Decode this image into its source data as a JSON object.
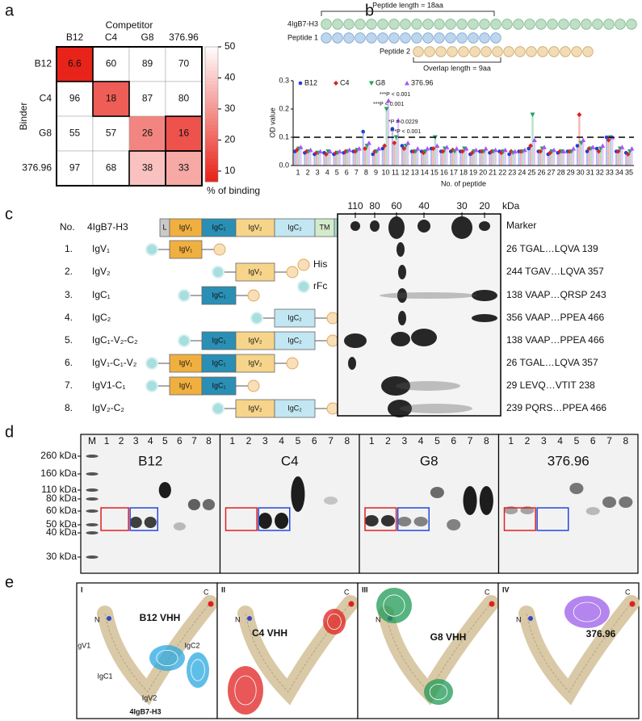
{
  "panel_labels": [
    "a",
    "b",
    "c",
    "d",
    "e"
  ],
  "chart_data": [
    {
      "type": "heatmap",
      "x_title": "Competitor",
      "y_title": "Binder",
      "x_categories": [
        "B12",
        "C4",
        "G8",
        "376.96"
      ],
      "y_categories": [
        "B12",
        "C4",
        "G8",
        "376.96"
      ],
      "values": [
        [
          6.6,
          60,
          89,
          70
        ],
        [
          96,
          18,
          87,
          80
        ],
        [
          55,
          57,
          26,
          16
        ],
        [
          97,
          68,
          38,
          33
        ]
      ],
      "colorbar_label": "% of binding",
      "clim": [
        6.6,
        50
      ],
      "colorbar_ticks": [
        10,
        20,
        30,
        40,
        50
      ],
      "low_color": "#e8231a",
      "high_color": "#ffffff"
    },
    {
      "type": "bar",
      "y_label": "OD value",
      "x_label": "No. of peptide",
      "categories": [
        "1",
        "2",
        "3",
        "4",
        "5",
        "6",
        "7",
        "8",
        "9",
        "10",
        "11",
        "12",
        "13",
        "14",
        "15",
        "16",
        "17",
        "18",
        "19",
        "20",
        "21",
        "22",
        "23",
        "24",
        "25",
        "26",
        "27",
        "28",
        "29",
        "30",
        "31",
        "32",
        "33",
        "34",
        "35"
      ],
      "ylim": [
        0,
        0.3
      ],
      "yticks": [
        {
          "value": 0,
          "label": "0.0"
        },
        {
          "value": 0.1,
          "label": "0.1"
        },
        {
          "value": 0.2,
          "label": "0.2"
        },
        {
          "value": 0.3,
          "label": "0.3"
        }
      ],
      "threshold": 0.1,
      "series": [
        {
          "name": "B12",
          "color": "#1f3fd6",
          "marker": "circle",
          "values": [
            0.05,
            0.045,
            0.04,
            0.045,
            0.04,
            0.045,
            0.05,
            0.12,
            0.04,
            0.06,
            0.13,
            0.07,
            0.05,
            0.05,
            0.06,
            0.05,
            0.05,
            0.05,
            0.04,
            0.05,
            0.045,
            0.05,
            0.04,
            0.05,
            0.06,
            0.05,
            0.04,
            0.045,
            0.05,
            0.07,
            0.05,
            0.06,
            0.1,
            0.05,
            0.045
          ]
        },
        {
          "name": "C4",
          "color": "#e02020",
          "marker": "diamond",
          "values": [
            0.055,
            0.05,
            0.045,
            0.04,
            0.045,
            0.05,
            0.05,
            0.06,
            0.05,
            0.07,
            0.08,
            0.06,
            0.05,
            0.045,
            0.06,
            0.05,
            0.055,
            0.05,
            0.045,
            0.05,
            0.05,
            0.045,
            0.05,
            0.05,
            0.07,
            0.05,
            0.045,
            0.05,
            0.05,
            0.18,
            0.06,
            0.05,
            0.09,
            0.05,
            0.04
          ]
        },
        {
          "name": "G8",
          "color": "#22a060",
          "marker": "triangle-down",
          "values": [
            0.06,
            0.05,
            0.045,
            0.05,
            0.045,
            0.05,
            0.055,
            0.07,
            0.05,
            0.2,
            0.1,
            0.07,
            0.05,
            0.05,
            0.1,
            0.06,
            0.05,
            0.06,
            0.05,
            0.05,
            0.05,
            0.05,
            0.045,
            0.05,
            0.18,
            0.06,
            0.05,
            0.05,
            0.05,
            0.08,
            0.06,
            0.06,
            0.1,
            0.06,
            0.05
          ]
        },
        {
          "name": "376.96",
          "color": "#a855f7",
          "marker": "triangle-up",
          "values": [
            0.065,
            0.055,
            0.05,
            0.05,
            0.05,
            0.055,
            0.06,
            0.08,
            0.06,
            0.23,
            0.16,
            0.08,
            0.06,
            0.06,
            0.07,
            0.065,
            0.06,
            0.06,
            0.055,
            0.06,
            0.055,
            0.055,
            0.05,
            0.055,
            0.09,
            0.065,
            0.055,
            0.05,
            0.06,
            0.09,
            0.065,
            0.07,
            0.1,
            0.065,
            0.06
          ]
        }
      ],
      "annotations": [
        "***P < 0.001",
        "***P < 0.001",
        "*P = 0.0229",
        "***P < 0.001"
      ]
    }
  ],
  "peptide_diagram": {
    "peptide_length": "Peptide length = 18aa",
    "overlap_length": "Overlap length = 9aa",
    "rows": [
      "4IgB7-H3",
      "Peptide 1",
      "Peptide 2"
    ]
  },
  "constructs": {
    "header_no": "No.",
    "header_name": "4IgB7-H3",
    "domains": [
      "L",
      "IgV₁",
      "IgC₁",
      "IgV₂",
      "IgC₂",
      "TM",
      "CT"
    ],
    "rows": [
      {
        "no": "1.",
        "name": "IgV₁"
      },
      {
        "no": "2.",
        "name": "IgV₂"
      },
      {
        "no": "3.",
        "name": "IgC₁"
      },
      {
        "no": "4.",
        "name": "IgC₂"
      },
      {
        "no": "5.",
        "name": "IgC₁-V₂-C₂"
      },
      {
        "no": "6.",
        "name": "IgV₁-C₁-V₂"
      },
      {
        "no": "7.",
        "name": "IgV1-C₁"
      },
      {
        "no": "8.",
        "name": "IgV₂-C₂"
      }
    ],
    "legend": [
      "His",
      "rFc"
    ]
  },
  "blot_c": {
    "markers": [
      "110",
      "80",
      "60",
      "40",
      "30",
      "20"
    ],
    "unit": "kDa",
    "lanes": [
      "Marker",
      "26 TGAL…LQVA 139",
      "244 TGAV…LQVA 357",
      "138 VAAP…QRSP 243",
      "356 VAAP…PPEA 466",
      "138 VAAP…PPEA 466",
      "26 TGAL…LQVA 357",
      "29 LEVQ…VTIT 238",
      "239 PQRS…PPEA 466"
    ]
  },
  "blot_d": {
    "size_labels": [
      "260 kDa",
      "160 kDa",
      "110 kDa",
      "80 kDa",
      "60 kDa",
      "50 kDa",
      "40 kDa",
      "30 kDa"
    ],
    "panels": [
      {
        "title": "B12",
        "color": "#2248e0",
        "lanes": [
          "M",
          "1",
          "2",
          "3",
          "4",
          "5",
          "6",
          "7",
          "8"
        ]
      },
      {
        "title": "C4",
        "color": "#e02020",
        "lanes": [
          "1",
          "2",
          "3",
          "4",
          "5",
          "6",
          "7",
          "8"
        ]
      },
      {
        "title": "G8",
        "color": "#22a060",
        "lanes": [
          "1",
          "2",
          "3",
          "4",
          "5",
          "6",
          "7",
          "8"
        ]
      },
      {
        "title": "376.96",
        "color": "#a855f7",
        "lanes": [
          "1",
          "2",
          "3",
          "4",
          "5",
          "6",
          "7",
          "8"
        ]
      }
    ]
  },
  "structures": {
    "panels": [
      {
        "numeral": "I",
        "label": "B12 VHH",
        "color": "#2aa8e0"
      },
      {
        "numeral": "II",
        "label": "C4 VHH",
        "color": "#e02020"
      },
      {
        "numeral": "III",
        "label": "G8 VHH",
        "color": "#1f9a55"
      },
      {
        "numeral": "IV",
        "label": "376.96",
        "color": "#9b5ce8"
      }
    ],
    "termini": [
      "N",
      "C"
    ],
    "domain_labels": [
      "IgV1",
      "IgC1",
      "IgC2",
      "IgV2"
    ],
    "protein": "4IgB7-H3"
  }
}
